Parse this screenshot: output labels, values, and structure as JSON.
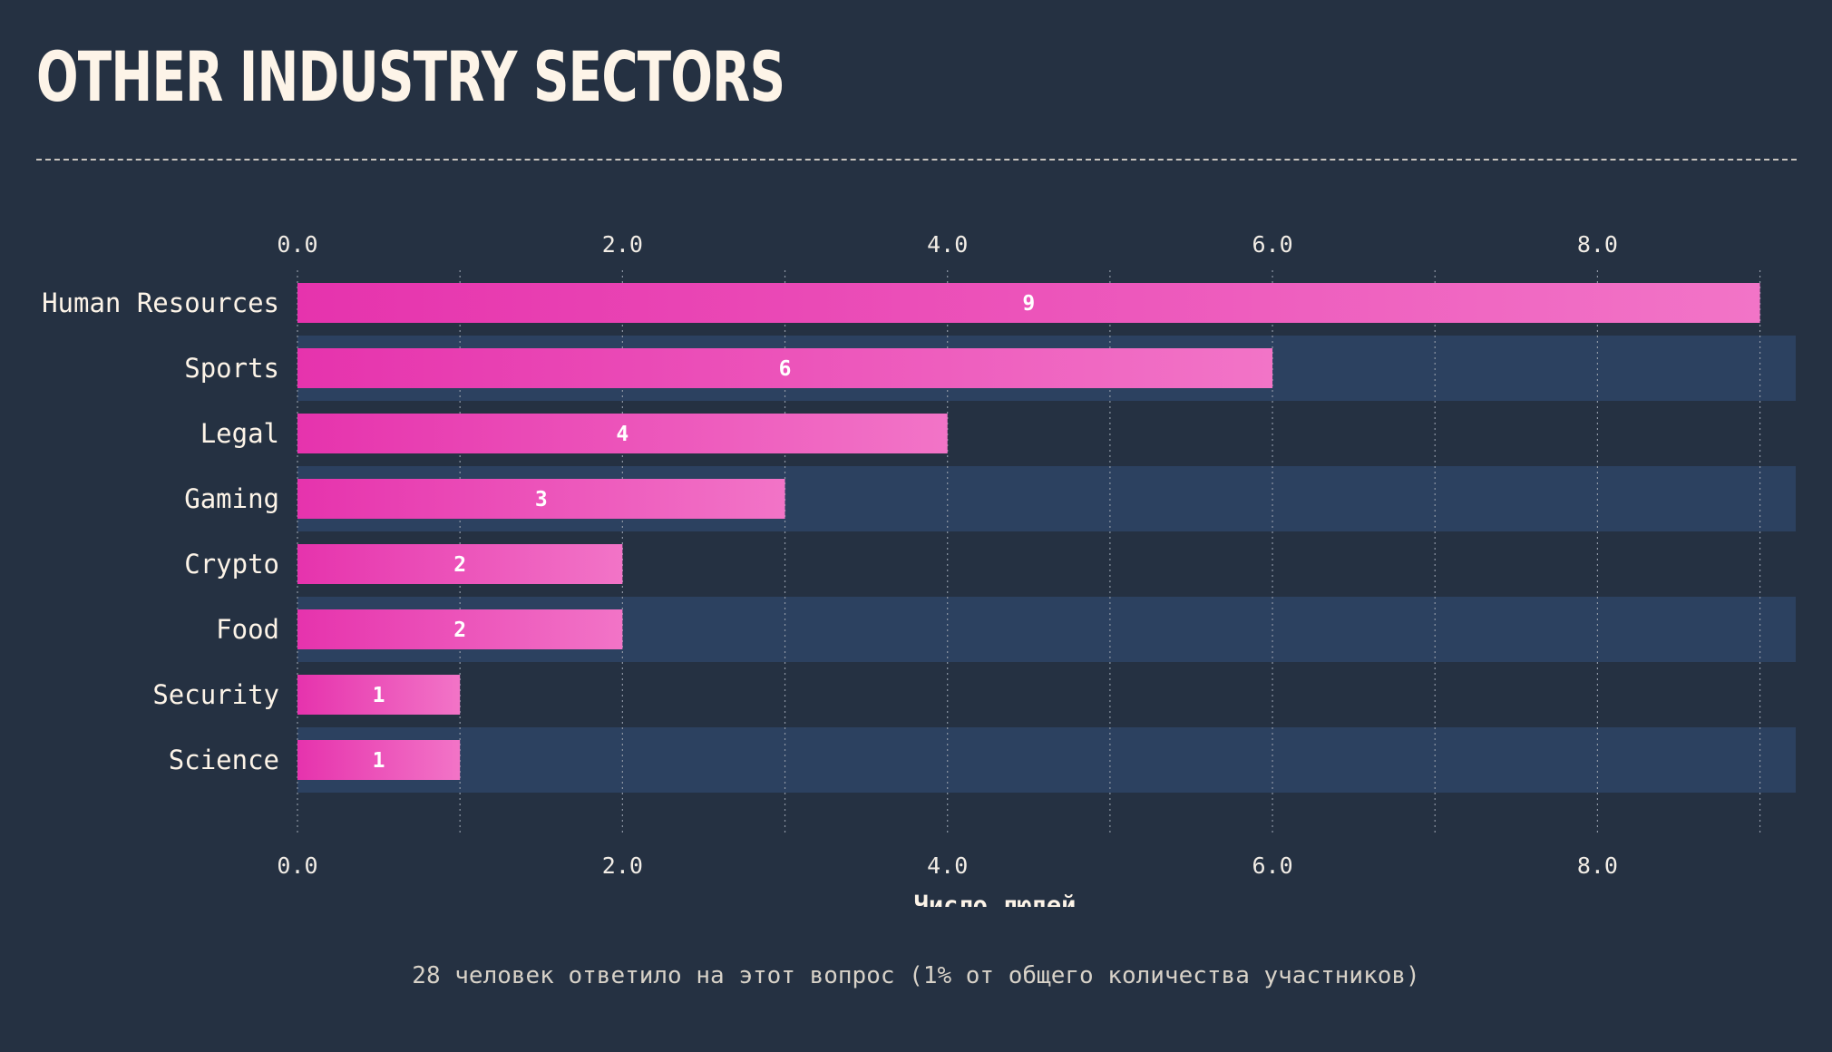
{
  "page": {
    "title": "OTHER INDUSTRY SECTORS",
    "footnote": "28 человек ответило на этот вопрос (1% от общего количества участников)"
  },
  "colors": {
    "background": "#253142",
    "band": "#2c4160",
    "bar_start": "#e633ad",
    "bar_end": "#f274c7",
    "text": "#fdf4e8"
  },
  "chart_data": {
    "type": "bar",
    "orientation": "horizontal",
    "categories": [
      "Human Resources",
      "Sports",
      "Legal",
      "Gaming",
      "Crypto",
      "Food",
      "Security",
      "Science"
    ],
    "values": [
      9,
      6,
      4,
      3,
      2,
      2,
      1,
      1
    ],
    "value_labels": [
      "9",
      "6",
      "4",
      "3",
      "2",
      "2",
      "1",
      "1"
    ],
    "xlabel": "Число людей",
    "xlim": [
      0,
      9.22
    ],
    "x_ticks": [
      0,
      2,
      4,
      6,
      8
    ],
    "x_tick_labels": [
      "0.0",
      "2.0",
      "4.0",
      "6.0",
      "8.0"
    ],
    "grid": true,
    "axis_position": "top and bottom"
  }
}
